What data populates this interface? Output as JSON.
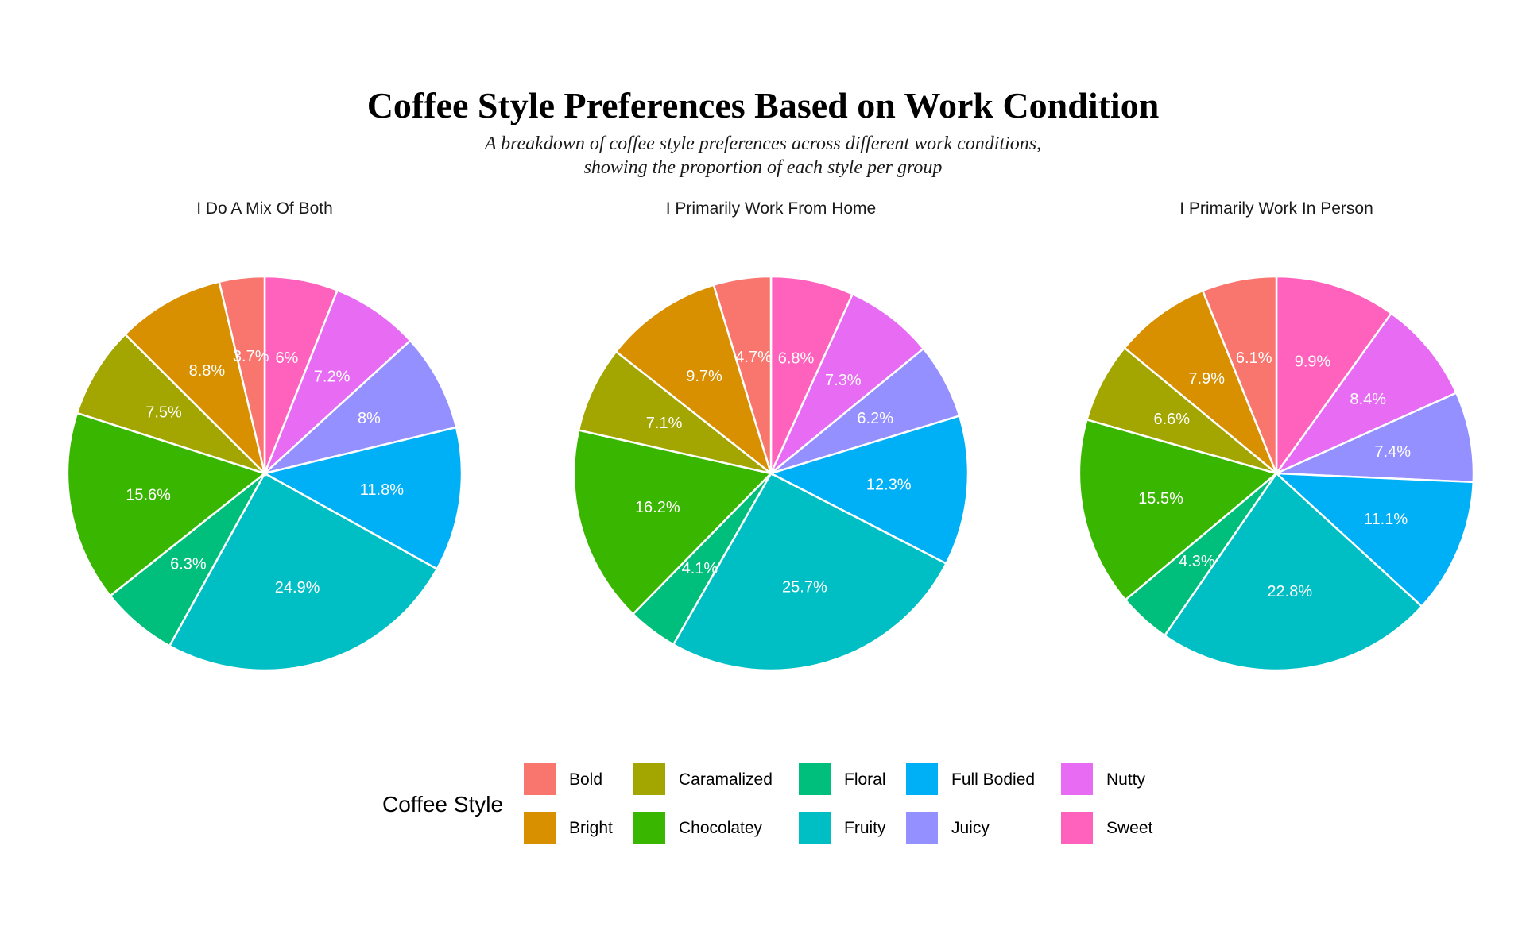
{
  "chart_data": {
    "type": "pie",
    "title": "Coffee Style Preferences Based on Work Condition",
    "subtitle_lines": [
      "A breakdown of coffee style preferences across different work conditions,",
      "showing the proportion of each  style per group"
    ],
    "legend": {
      "title": "Coffee Style",
      "placement": "bottom"
    },
    "categories": [
      "Bold",
      "Bright",
      "Caramalized",
      "Chocolatey",
      "Floral",
      "Fruity",
      "Full Bodied",
      "Juicy",
      "Nutty",
      "Sweet"
    ],
    "colors": {
      "Bold": "#F8766D",
      "Bright": "#D89000",
      "Caramalized": "#A3A500",
      "Chocolatey": "#39B600",
      "Floral": "#00BF7D",
      "Fruity": "#00BFC4",
      "Full Bodied": "#00B0F6",
      "Juicy": "#9590FF",
      "Nutty": "#E76BF3",
      "Sweet": "#FF62BC"
    },
    "slice_order": [
      "Sweet",
      "Nutty",
      "Juicy",
      "Full Bodied",
      "Fruity",
      "Floral",
      "Chocolatey",
      "Caramalized",
      "Bright",
      "Bold"
    ],
    "series": [
      {
        "name": "I Do A Mix Of Both",
        "values": {
          "Bold": 3.7,
          "Bright": 8.8,
          "Caramalized": 7.5,
          "Chocolatey": 15.6,
          "Floral": 6.3,
          "Fruity": 24.9,
          "Full Bodied": 11.8,
          "Juicy": 8,
          "Nutty": 7.2,
          "Sweet": 6
        },
        "labels": {
          "Bold": "3.7%",
          "Bright": "8.8%",
          "Caramalized": "7.5%",
          "Chocolatey": "15.6%",
          "Floral": "6.3%",
          "Fruity": "24.9%",
          "Full Bodied": "11.8%",
          "Juicy": "8%",
          "Nutty": "7.2%",
          "Sweet": "6%"
        }
      },
      {
        "name": "I Primarily Work From Home",
        "values": {
          "Bold": 4.7,
          "Bright": 9.7,
          "Caramalized": 7.1,
          "Chocolatey": 16.2,
          "Floral": 4.1,
          "Fruity": 25.7,
          "Full Bodied": 12.3,
          "Juicy": 6.2,
          "Nutty": 7.3,
          "Sweet": 6.8
        },
        "labels": {
          "Bold": "4.7%",
          "Bright": "9.7%",
          "Caramalized": "7.1%",
          "Chocolatey": "16.2%",
          "Floral": "4.1%",
          "Fruity": "25.7%",
          "Full Bodied": "12.3%",
          "Juicy": "6.2%",
          "Nutty": "7.3%",
          "Sweet": "6.8%"
        }
      },
      {
        "name": "I Primarily Work In Person",
        "values": {
          "Bold": 6.1,
          "Bright": 7.9,
          "Caramalized": 6.6,
          "Chocolatey": 15.5,
          "Floral": 4.3,
          "Fruity": 22.8,
          "Full Bodied": 11.1,
          "Juicy": 7.4,
          "Nutty": 8.4,
          "Sweet": 9.9
        },
        "labels": {
          "Bold": "6.1%",
          "Bright": "7.9%",
          "Caramalized": "6.6%",
          "Chocolatey": "15.5%",
          "Floral": "4.3%",
          "Fruity": "22.8%",
          "Full Bodied": "11.1%",
          "Juicy": "7.4%",
          "Nutty": "8.4%",
          "Sweet": "9.9%"
        }
      }
    ]
  }
}
